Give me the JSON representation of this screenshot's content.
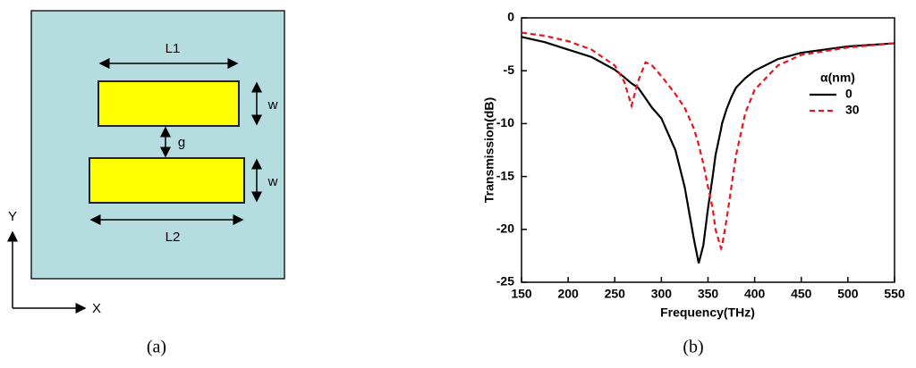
{
  "panel_a": {
    "labels": {
      "l1": "L1",
      "l2": "L2",
      "w_top": "w",
      "w_bottom": "w",
      "g": "g",
      "y_axis": "Y",
      "x_axis": "X"
    }
  },
  "captions": {
    "a": "(a)",
    "b": "(b)"
  },
  "chart_data": {
    "type": "line",
    "x_label": "Frequency(THz)",
    "y_label": "Transmission(dB)",
    "legend_title": "α(nm)",
    "legend": "upper right",
    "x": [
      150,
      175,
      200,
      225,
      250,
      260,
      268,
      275,
      283,
      290,
      300,
      315,
      325,
      335,
      340,
      345,
      350,
      355,
      358,
      364,
      365,
      370,
      375,
      380,
      390,
      400,
      425,
      450,
      500,
      550
    ],
    "series": [
      {
        "name": "0",
        "color": "#000000",
        "dash": false,
        "values": [
          -1.8,
          -2.3,
          -3.0,
          -3.7,
          -4.9,
          -5.6,
          -6.2,
          -6.6,
          -7.6,
          -8.5,
          -9.5,
          -12.5,
          -16,
          -21,
          -23.2,
          -21.5,
          -18,
          -15,
          -13,
          -10.5,
          -10,
          -8.6,
          -7.5,
          -6.6,
          -5.7,
          -5,
          -3.9,
          -3.3,
          -2.7,
          -2.4
        ]
      },
      {
        "name": "30",
        "color": "#e8141b",
        "dash": true,
        "values": [
          -1.4,
          -1.7,
          -2.2,
          -3,
          -4.5,
          -6,
          -8.3,
          -6,
          -4.2,
          -4.5,
          -5.5,
          -7.2,
          -8.5,
          -10.5,
          -12,
          -13.8,
          -16,
          -18,
          -20,
          -21.8,
          -21.6,
          -19,
          -16,
          -13,
          -9,
          -6.8,
          -4.5,
          -3.5,
          -2.8,
          -2.4
        ]
      }
    ],
    "xlim": [
      150,
      550
    ],
    "ylim": [
      -25,
      0
    ],
    "xticks": [
      150,
      200,
      250,
      300,
      350,
      400,
      450,
      500,
      550
    ],
    "yticks": [
      0,
      -5,
      -10,
      -15,
      -20,
      -25
    ]
  }
}
